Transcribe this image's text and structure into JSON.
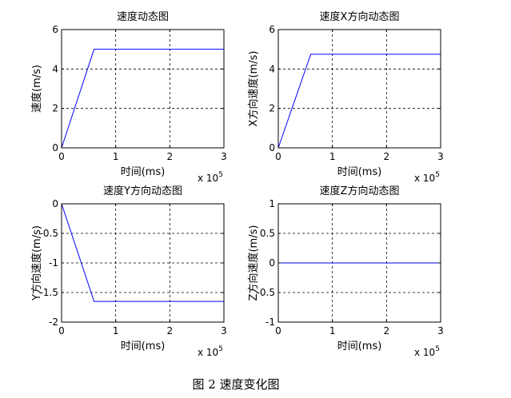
{
  "figure_caption": "图 2  速度变化图",
  "chart_data": [
    {
      "type": "line",
      "title": "速度动态图",
      "xlabel": "时间(ms)",
      "ylabel": "速度(m/s)",
      "x_exponent_label": "x 10",
      "x_exponent": "5",
      "xlim": [
        0,
        3
      ],
      "ylim": [
        0,
        6
      ],
      "xticks": [
        "0",
        "1",
        "2",
        "3"
      ],
      "yticks": [
        "0",
        "2",
        "4",
        "6"
      ],
      "xtick_values": [
        0,
        1,
        2,
        3
      ],
      "ytick_values": [
        0,
        2,
        4,
        6
      ],
      "grid": true,
      "series": [
        {
          "color": "#0000ff",
          "x": [
            0,
            0.6,
            3
          ],
          "y": [
            0,
            5,
            5
          ]
        }
      ]
    },
    {
      "type": "line",
      "title": "速度X方向动态图",
      "xlabel": "时间(ms)",
      "ylabel": "X方向速度(m/s)",
      "x_exponent_label": "x 10",
      "x_exponent": "5",
      "xlim": [
        0,
        3
      ],
      "ylim": [
        0,
        6
      ],
      "xticks": [
        "0",
        "1",
        "2",
        "3"
      ],
      "yticks": [
        "0",
        "2",
        "4",
        "6"
      ],
      "xtick_values": [
        0,
        1,
        2,
        3
      ],
      "ytick_values": [
        0,
        2,
        4,
        6
      ],
      "grid": true,
      "series": [
        {
          "color": "#0000ff",
          "x": [
            0,
            0.6,
            3
          ],
          "y": [
            0,
            4.75,
            4.75
          ]
        }
      ]
    },
    {
      "type": "line",
      "title": "速度Y方向动态图",
      "xlabel": "时间(ms)",
      "ylabel": "Y方向速度(m/s)",
      "x_exponent_label": "x 10",
      "x_exponent": "5",
      "xlim": [
        0,
        3
      ],
      "ylim": [
        -2,
        0
      ],
      "xticks": [
        "0",
        "1",
        "2",
        "3"
      ],
      "yticks": [
        "-2",
        "-1.5",
        "-1",
        "-0.5",
        "0"
      ],
      "xtick_values": [
        0,
        1,
        2,
        3
      ],
      "ytick_values": [
        -2,
        -1.5,
        -1,
        -0.5,
        0
      ],
      "grid": true,
      "series": [
        {
          "color": "#0000ff",
          "x": [
            0,
            0.6,
            3
          ],
          "y": [
            0,
            -1.65,
            -1.65
          ]
        }
      ]
    },
    {
      "type": "line",
      "title": "速度Z方向动态图",
      "xlabel": "时间(ms)",
      "ylabel": "Z方向速度(m/s)",
      "x_exponent_label": "x 10",
      "x_exponent": "5",
      "xlim": [
        0,
        3
      ],
      "ylim": [
        -1,
        1
      ],
      "xticks": [
        "0",
        "1",
        "2",
        "3"
      ],
      "yticks": [
        "-1",
        "-0.5",
        "0",
        "0.5",
        "1"
      ],
      "xtick_values": [
        0,
        1,
        2,
        3
      ],
      "ytick_values": [
        -1,
        -0.5,
        0,
        0.5,
        1
      ],
      "grid": true,
      "series": [
        {
          "color": "#0000ff",
          "x": [
            0,
            3
          ],
          "y": [
            0,
            0
          ]
        }
      ]
    }
  ]
}
